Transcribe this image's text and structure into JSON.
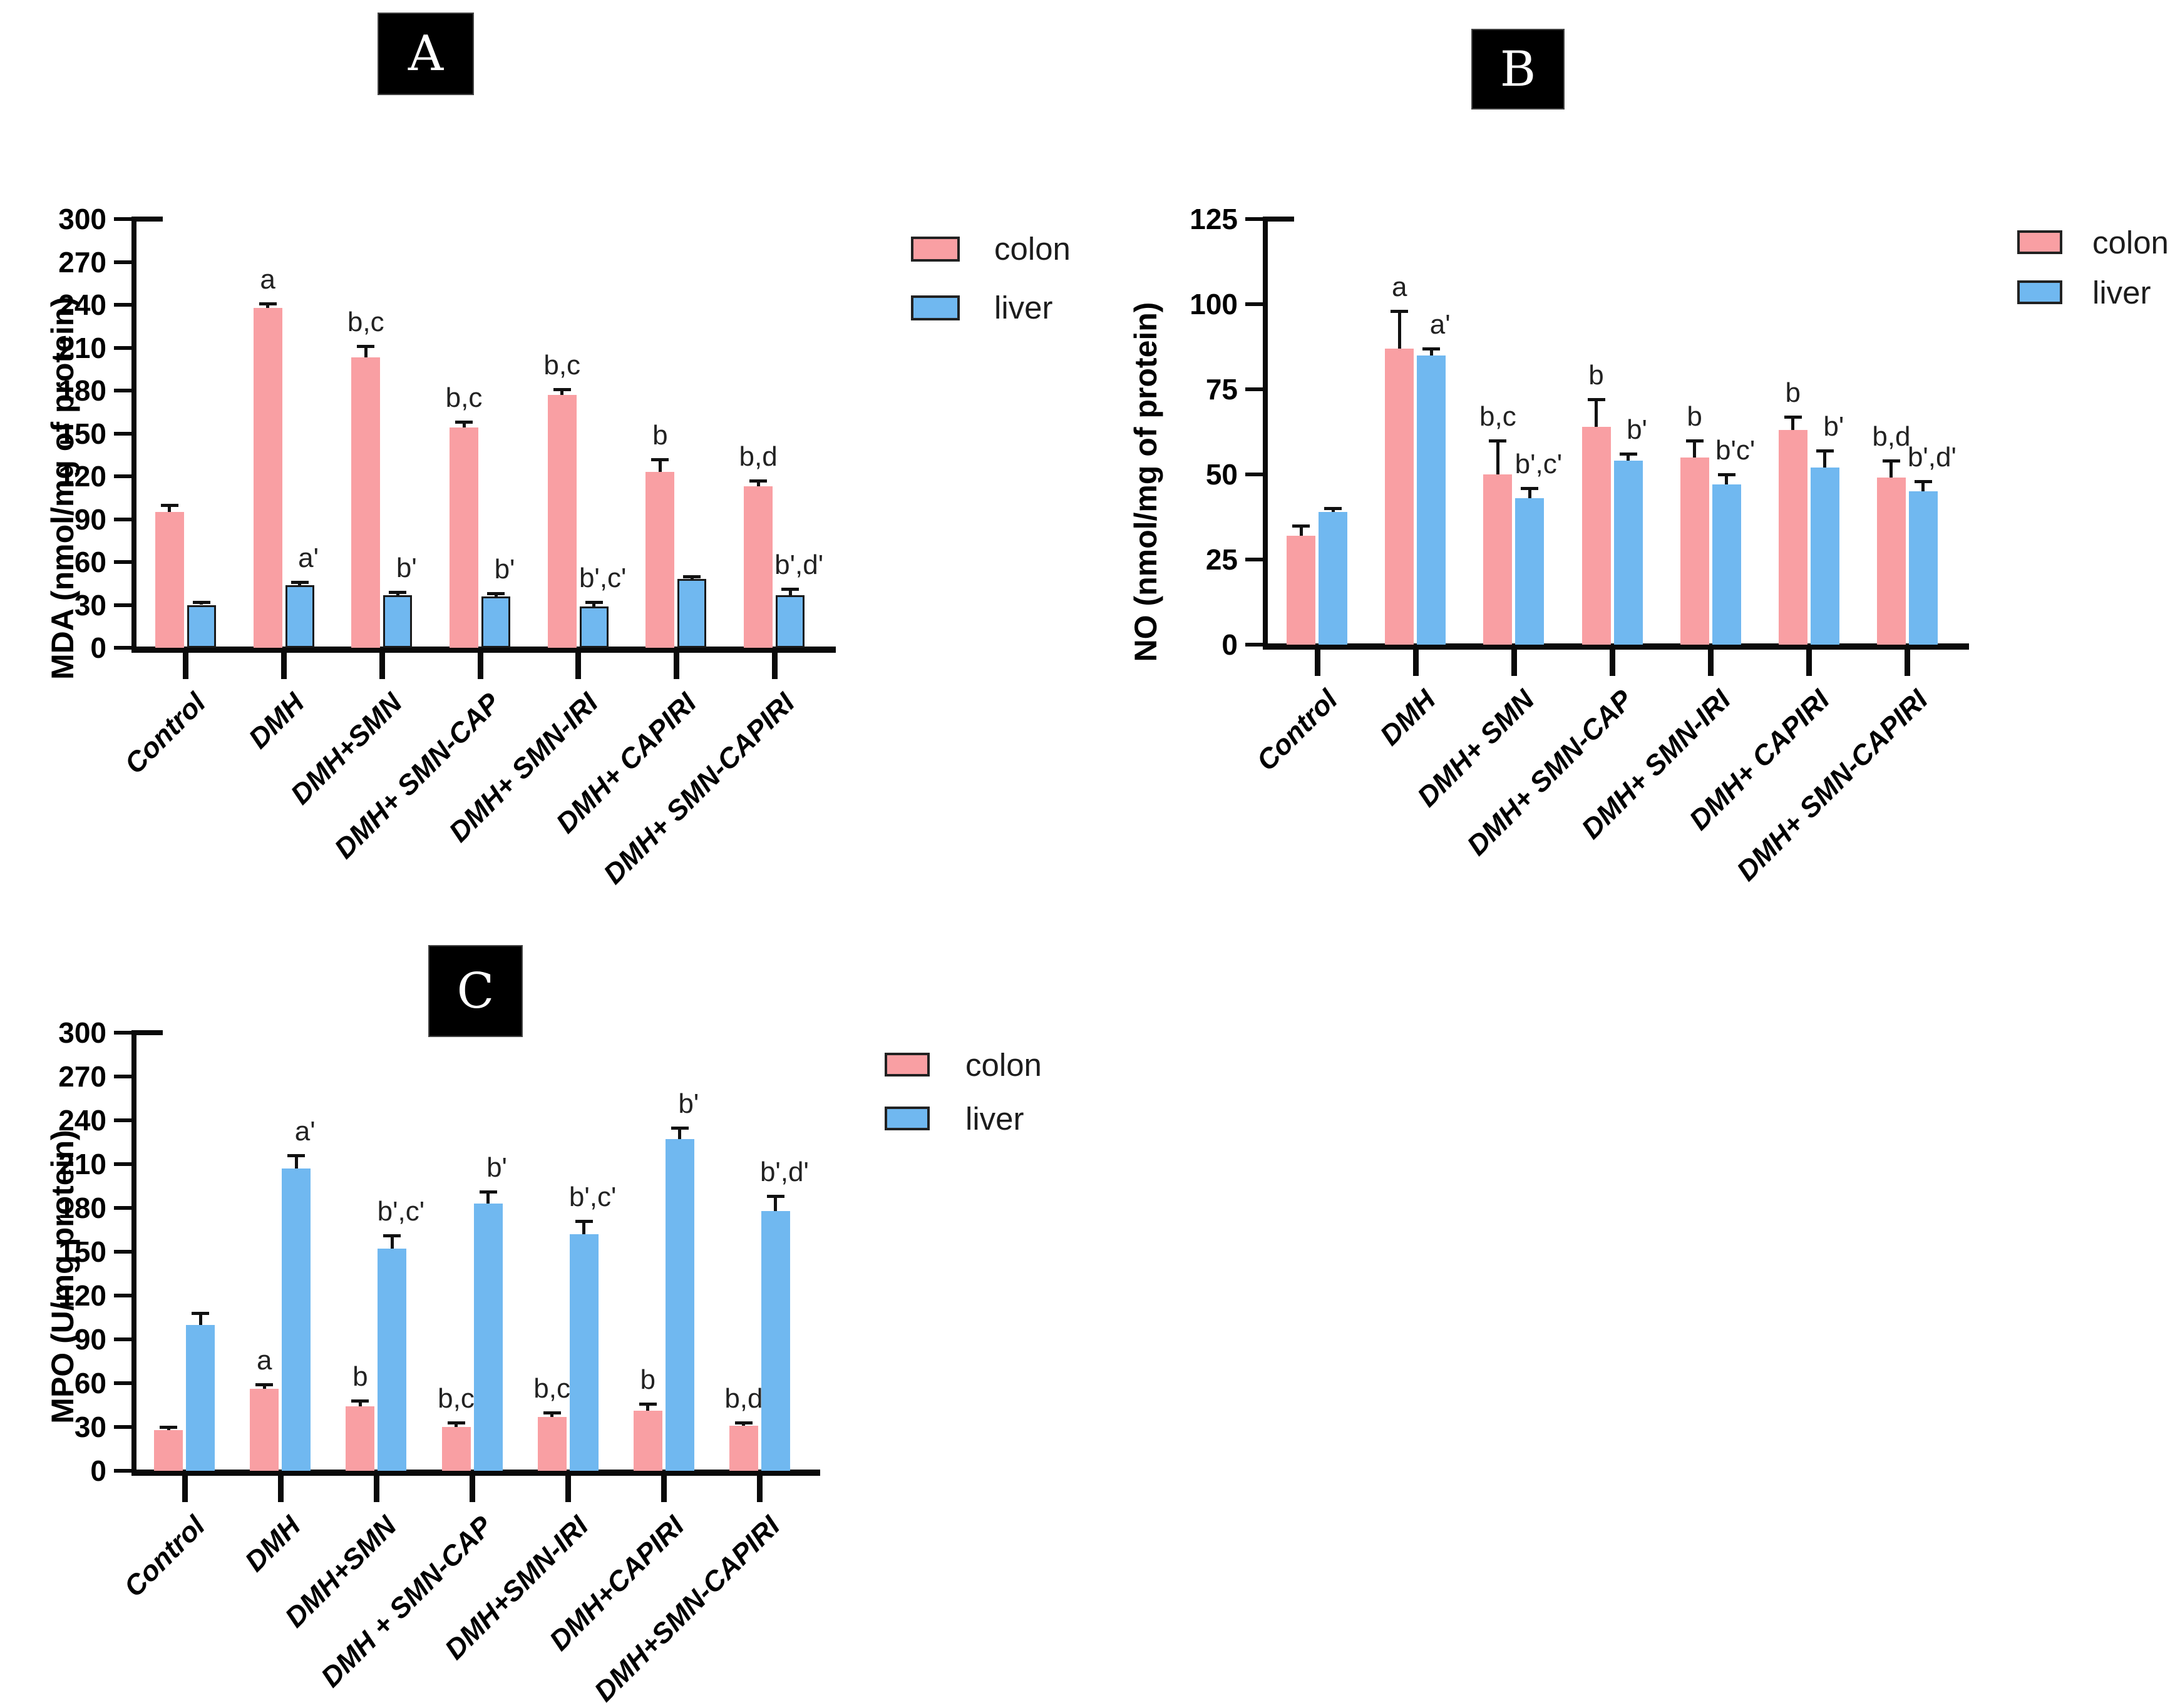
{
  "figure": {
    "background": "#ffffff",
    "series_colors": {
      "colon": "#f99fa3",
      "liver": "#70b8f0"
    },
    "legend_labels": [
      "colon",
      "liver"
    ]
  },
  "chart_data": [
    {
      "type": "bar",
      "panel_label": "A",
      "ylabel": "MDA (nmol/mg of protein)",
      "ylim": [
        0,
        300
      ],
      "ytick_step": 30,
      "grid": false,
      "legend": [
        "colon",
        "liver"
      ],
      "legend_position": "right-top",
      "categories": [
        "Control",
        "DMH",
        "DMH+SMN",
        "DMH+ SMN-CAP",
        "DMH+ SMN-IRI",
        "DMH+ CAPIRI",
        "DMH+ SMN-CAPIRI"
      ],
      "series": [
        {
          "name": "colon",
          "color": "#f99fa3",
          "bar_border": "none",
          "values": [
            95,
            238,
            203,
            154,
            177,
            123,
            113
          ],
          "errors": [
            5,
            3,
            8,
            4,
            4,
            9,
            4
          ],
          "sig_labels": [
            "",
            "a",
            "b,c",
            "b,c",
            "b,c",
            "b",
            "b,d"
          ]
        },
        {
          "name": "liver",
          "color": "#70b8f0",
          "bar_border": "#1a1a1a",
          "values": [
            30,
            44,
            37,
            36,
            29,
            48,
            37
          ],
          "errors": [
            2,
            2,
            2,
            2,
            3,
            2,
            4
          ],
          "sig_labels": [
            "",
            "a'",
            "b'",
            "b'",
            "b',c'",
            "",
            "b',d'"
          ]
        }
      ]
    },
    {
      "type": "bar",
      "panel_label": "B",
      "ylabel": "NO (nmol/mg of protein)",
      "ylim": [
        0,
        125
      ],
      "ytick_step": 25,
      "grid": false,
      "legend": [
        "colon",
        "liver"
      ],
      "legend_position": "right-top",
      "categories": [
        "Control",
        "DMH",
        "DMH+ SMN",
        "DMH+ SMN-CAP",
        "DMH+ SMN-IRI",
        "DMH+ CAPIRI",
        "DMH+ SMN-CAPIRI"
      ],
      "series": [
        {
          "name": "colon",
          "color": "#f99fa3",
          "bar_border": "none",
          "values": [
            32,
            87,
            50,
            64,
            55,
            63,
            49
          ],
          "errors": [
            3,
            11,
            10,
            8,
            5,
            4,
            5
          ],
          "sig_labels": [
            "",
            "a",
            "b,c",
            "b",
            "b",
            "b",
            "b,d"
          ]
        },
        {
          "name": "liver",
          "color": "#70b8f0",
          "bar_border": "none",
          "values": [
            39,
            85,
            43,
            54,
            47,
            52,
            45
          ],
          "errors": [
            1,
            2,
            3,
            2,
            3,
            5,
            3
          ],
          "sig_labels": [
            "",
            "a'",
            "b',c'",
            "b'",
            "b'c'",
            "b'",
            "b',d'"
          ]
        }
      ]
    },
    {
      "type": "bar",
      "panel_label": "C",
      "ylabel": "MPO (U/mg protein)",
      "ylim": [
        0,
        300
      ],
      "ytick_step": 30,
      "grid": false,
      "legend": [
        "colon",
        "liver"
      ],
      "legend_position": "right-top",
      "categories": [
        "Control",
        "DMH",
        "DMH+SMN",
        "DMH + SMN-CAP",
        "DMH+SMN-IRI",
        "DMH+CAPIRI",
        "DMH+SMN-CAPIRI"
      ],
      "series": [
        {
          "name": "colon",
          "color": "#f99fa3",
          "bar_border": "none",
          "values": [
            28,
            56,
            44,
            30,
            37,
            41,
            31
          ],
          "errors": [
            2,
            3,
            4,
            3,
            3,
            5,
            2
          ],
          "sig_labels": [
            "",
            "a",
            "b",
            "b,c",
            "b,c",
            "b",
            "b,d"
          ]
        },
        {
          "name": "liver",
          "color": "#70b8f0",
          "bar_border": "none",
          "values": [
            100,
            207,
            152,
            183,
            162,
            227,
            178
          ],
          "errors": [
            8,
            9,
            9,
            8,
            9,
            8,
            10
          ],
          "sig_labels": [
            "",
            "a'",
            "b',c'",
            "b'",
            "b',c'",
            "b'",
            "b',d'"
          ]
        }
      ]
    }
  ]
}
